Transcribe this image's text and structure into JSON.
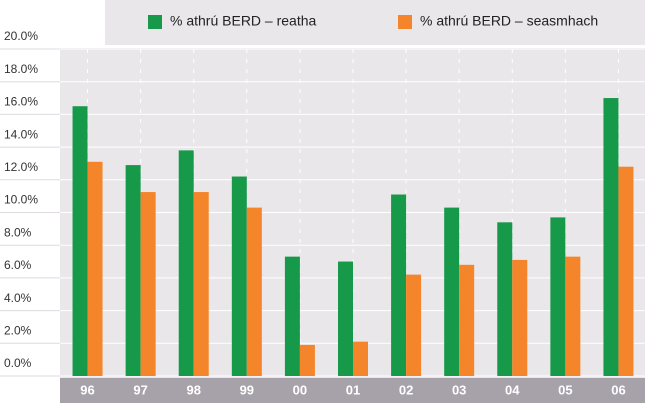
{
  "chart_data": {
    "type": "bar",
    "categories": [
      "96",
      "97",
      "98",
      "99",
      "00",
      "01",
      "02",
      "03",
      "04",
      "05",
      "06"
    ],
    "series": [
      {
        "name": "% athrú BERD – reatha",
        "color": "#17994a",
        "values": [
          16.5,
          12.9,
          13.8,
          12.2,
          7.3,
          7.0,
          11.1,
          10.3,
          9.4,
          9.7,
          17.0
        ]
      },
      {
        "name": "% athrú BERD – seasmhach",
        "color": "#f5852a",
        "values": [
          13.1,
          11.25,
          11.25,
          10.3,
          1.9,
          2.1,
          6.2,
          6.8,
          7.1,
          7.3,
          12.8
        ]
      }
    ],
    "ylim": [
      0,
      20
    ],
    "yticks": [
      {
        "value": 0,
        "label": "0.0%"
      },
      {
        "value": 2,
        "label": "2.0%"
      },
      {
        "value": 4,
        "label": "4.0%"
      },
      {
        "value": 6,
        "label": "6.0%"
      },
      {
        "value": 8,
        "label": "8.0%"
      },
      {
        "value": 10,
        "label": "10.0%"
      },
      {
        "value": 12,
        "label": "12.0%"
      },
      {
        "value": 14,
        "label": "14.0%"
      },
      {
        "value": 16,
        "label": "16.0%"
      },
      {
        "value": 18,
        "label": "18.0%"
      },
      {
        "value": 20,
        "label": "20.0%"
      }
    ],
    "grid": true,
    "legend": "top"
  }
}
